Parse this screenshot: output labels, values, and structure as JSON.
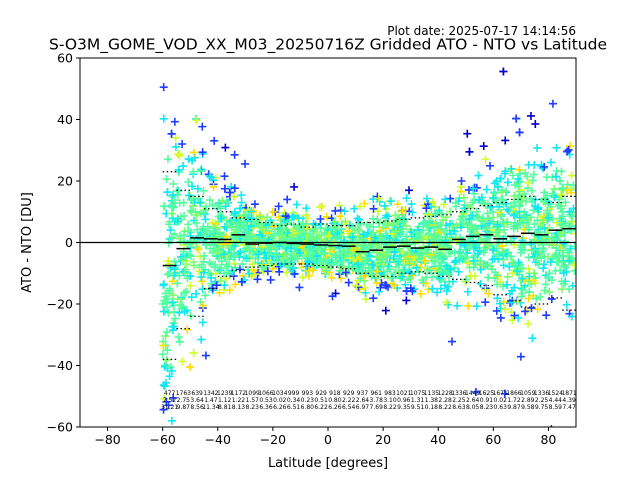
{
  "figure": {
    "plot_date": "Plot date: 2025-07-17 14:14:56"
  },
  "chart_data": {
    "type": "scatter",
    "title": "S-O3M_GOME_VOD_XX_M03_20250716Z Gridded ATO - NTO vs Latitude",
    "xlabel": "Latitude [degrees]",
    "ylabel": "ATO - NTO [DU]",
    "xlim": [
      -90,
      90
    ],
    "ylim": [
      -60,
      60
    ],
    "xticks": [
      -80,
      -60,
      -40,
      -20,
      0,
      20,
      40,
      60,
      80
    ],
    "yticks": [
      -60,
      -40,
      -20,
      0,
      20,
      40,
      60
    ],
    "xtick_labels": [
      "−80",
      "−60",
      "−40",
      "−20",
      "0",
      "20",
      "40",
      "60",
      "80"
    ],
    "ytick_labels": [
      "−60",
      "−40",
      "−20",
      "0",
      "20",
      "40",
      "60"
    ],
    "zero_line": 0,
    "grid": false,
    "marker": "+",
    "colors": [
      "#0000cc",
      "#1f3dff",
      "#11e8f0",
      "#55ffa0",
      "#7cff6c",
      "#cfff30",
      "#ffe000"
    ],
    "bins_center": [
      -57.5,
      -52.5,
      -47.5,
      -42.5,
      -37.5,
      -32.5,
      -27.5,
      -22.5,
      -17.5,
      -12.5,
      -7.5,
      -2.5,
      2.5,
      7.5,
      12.5,
      17.5,
      22.5,
      27.5,
      32.5,
      37.5,
      42.5,
      47.5,
      52.5,
      57.5,
      62.5,
      67.5,
      72.5,
      77.5,
      82.5,
      87.5
    ],
    "median": [
      -7.5,
      -2.0,
      1.5,
      1.2,
      1.0,
      2.5,
      -0.5,
      -0.2,
      0.0,
      -0.3,
      -0.5,
      -0.8,
      -1.0,
      -1.2,
      -3.0,
      -2.5,
      -1.5,
      -1.2,
      -1.8,
      -1.5,
      -2.2,
      1.0,
      2.0,
      2.5,
      1.2,
      2.0,
      3.0,
      2.5,
      4.0,
      4.5
    ],
    "upper": [
      23.0,
      17.0,
      15.0,
      11.0,
      10.0,
      8.0,
      7.5,
      6.5,
      5.5,
      6.0,
      5.0,
      6.0,
      5.5,
      5.5,
      6.5,
      6.5,
      7.0,
      7.5,
      8.0,
      8.5,
      9.0,
      10.0,
      11.0,
      12.0,
      13.0,
      14.0,
      15.0,
      14.0,
      13.0,
      15.0
    ],
    "lower": [
      -38.0,
      -28.0,
      -24.0,
      -15.0,
      -11.0,
      -9.0,
      -8.0,
      -7.5,
      -7.0,
      -7.0,
      -7.0,
      -7.5,
      -8.0,
      -8.5,
      -10.0,
      -11.0,
      -11.0,
      -10.0,
      -9.5,
      -10.0,
      -11.0,
      -12.0,
      -13.0,
      -14.0,
      -17.0,
      -19.0,
      -21.0,
      -20.0,
      -18.0,
      -22.0
    ],
    "stats_row1": [
      "477",
      "1763",
      "639",
      "1342",
      "1239",
      "1172",
      "1099",
      "1066",
      "1034",
      "999",
      "993",
      "929",
      "918",
      "929",
      "937",
      "961",
      "983",
      "1021",
      "1075",
      "1135",
      "1228",
      "1336",
      "1449",
      "1625",
      "1671",
      "1866",
      "1059",
      "1336",
      "1524",
      "1871"
    ],
    "stats_row2": [
      "7.52",
      "2.75",
      "3.64",
      "1.47",
      "1.12",
      "1.22",
      "1.57",
      "0.53",
      "0.02",
      "0.34",
      "0.23",
      "0.51",
      "0.80",
      "2.22",
      "2.64",
      "3.78",
      "3.10",
      "0.96",
      "1.31",
      "1.38",
      "2.28",
      "2.25",
      "2.64",
      "0.91",
      "0.02",
      "1.72",
      "2.89",
      "2.25",
      "4.44",
      "4.39"
    ],
    "stats_row3": [
      "31.21",
      "9.87",
      "8.56",
      "11.34",
      "8.81",
      "8.13",
      "8.23",
      "6.36",
      "6.26",
      "6.51",
      "6.80",
      "6.22",
      "6.26",
      "6.54",
      "6.97",
      "7.69",
      "8.22",
      "9.35",
      "9.51",
      "0.18",
      "8.22",
      "8.63",
      "8.05",
      "8.23",
      "0.63",
      "9.87",
      "9.58",
      "9.75",
      "8.59",
      "7.47"
    ]
  }
}
